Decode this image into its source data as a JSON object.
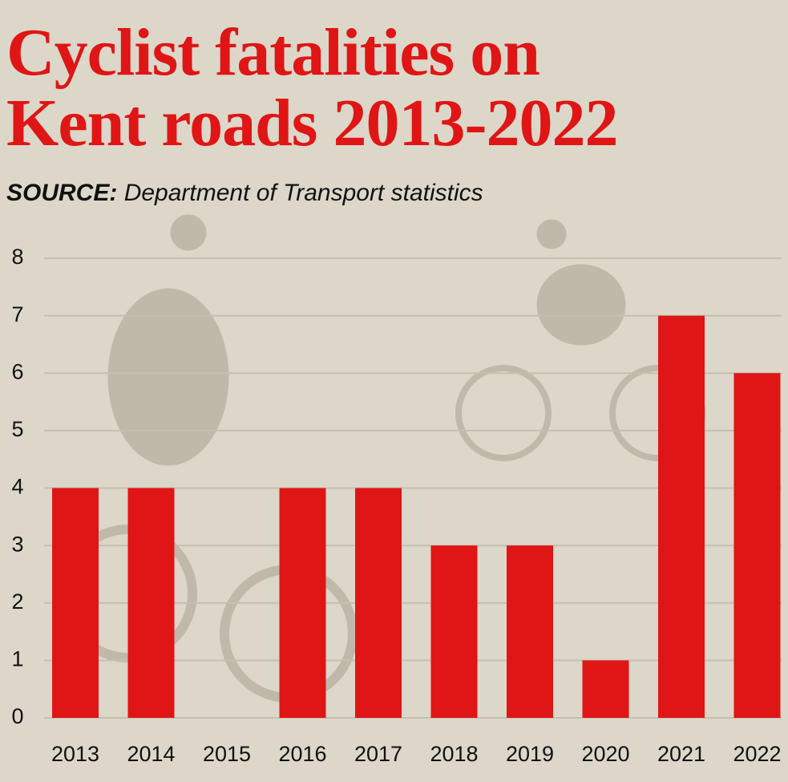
{
  "chart_data": {
    "type": "bar",
    "title": [
      "Cyclist fatalities on",
      "Kent roads 2013-2022"
    ],
    "source_label": "SOURCE:",
    "source_text": "Department of Transport statistics",
    "categories": [
      "2013",
      "2014",
      "2015",
      "2016",
      "2017",
      "2018",
      "2019",
      "2020",
      "2021",
      "2022"
    ],
    "values": [
      4,
      4,
      0,
      4,
      4,
      3,
      3,
      1,
      7,
      6
    ],
    "color": "#e01515",
    "ylim": [
      0,
      8
    ],
    "yticks": [
      0,
      1,
      2,
      3,
      4,
      5,
      6,
      7,
      8
    ],
    "grid": true
  }
}
